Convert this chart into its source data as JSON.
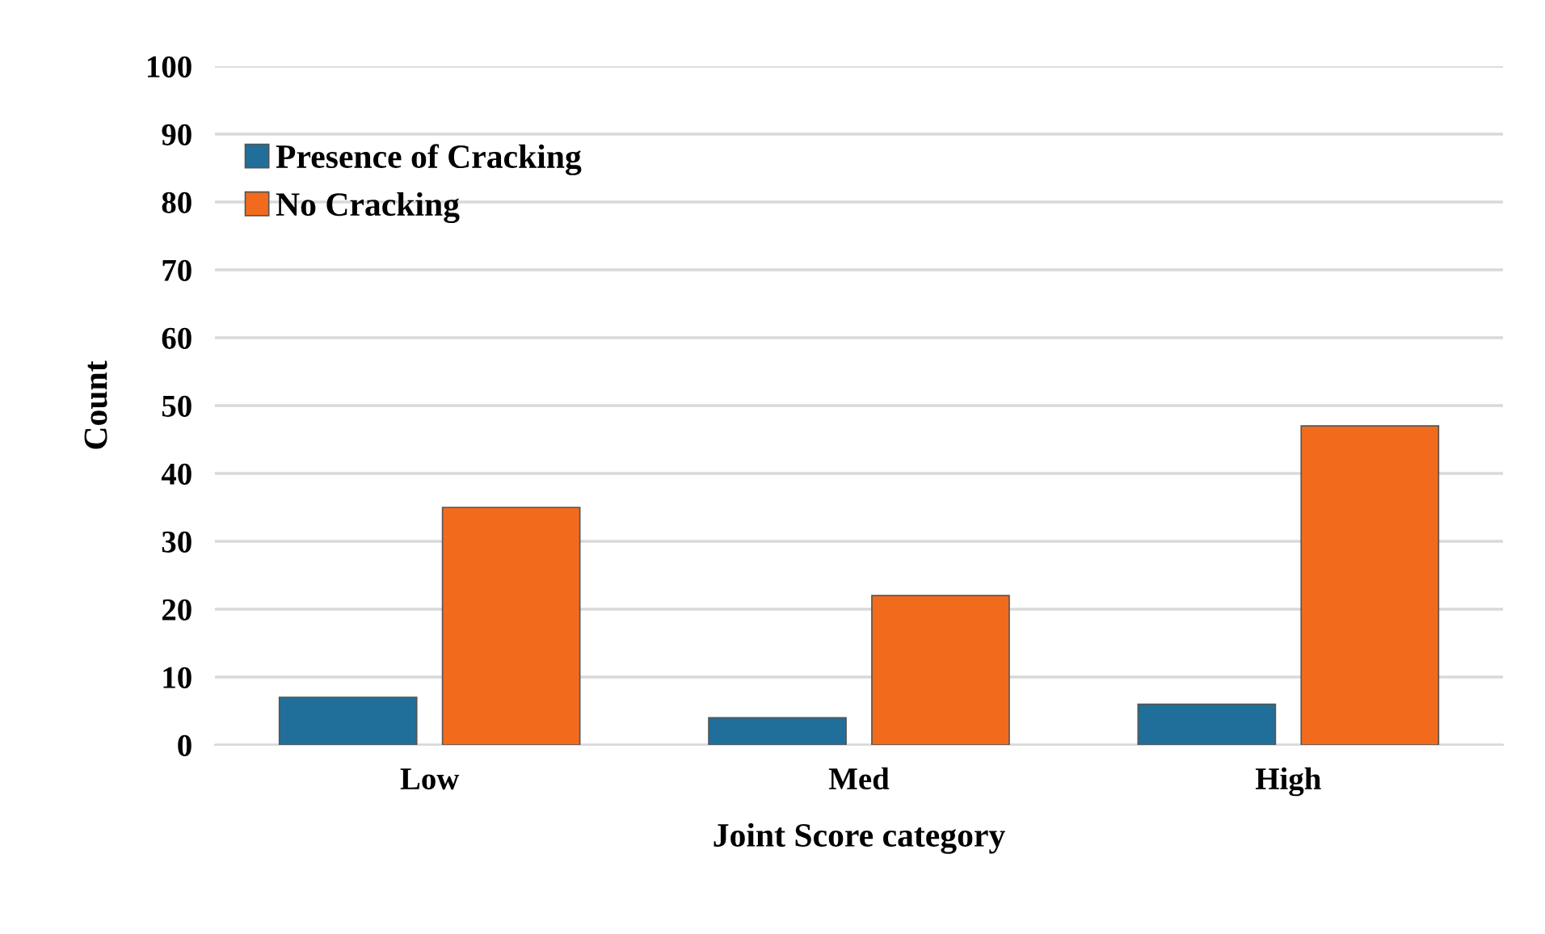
{
  "chart_data": {
    "type": "bar",
    "xlabel": "Joint Score category",
    "ylabel": "Count",
    "categories": [
      "Low",
      "Med",
      "High"
    ],
    "series": [
      {
        "name": "Presence of Cracking",
        "color": "#1f6f9a",
        "values": [
          7,
          4,
          6
        ]
      },
      {
        "name": "No Cracking",
        "color": "#f26b1d",
        "values": [
          35,
          22,
          47
        ]
      }
    ],
    "ylim": [
      0,
      100
    ],
    "yticks": [
      0,
      10,
      20,
      30,
      40,
      50,
      60,
      70,
      80,
      90,
      100
    ],
    "grid": "y",
    "legend": "top left"
  }
}
